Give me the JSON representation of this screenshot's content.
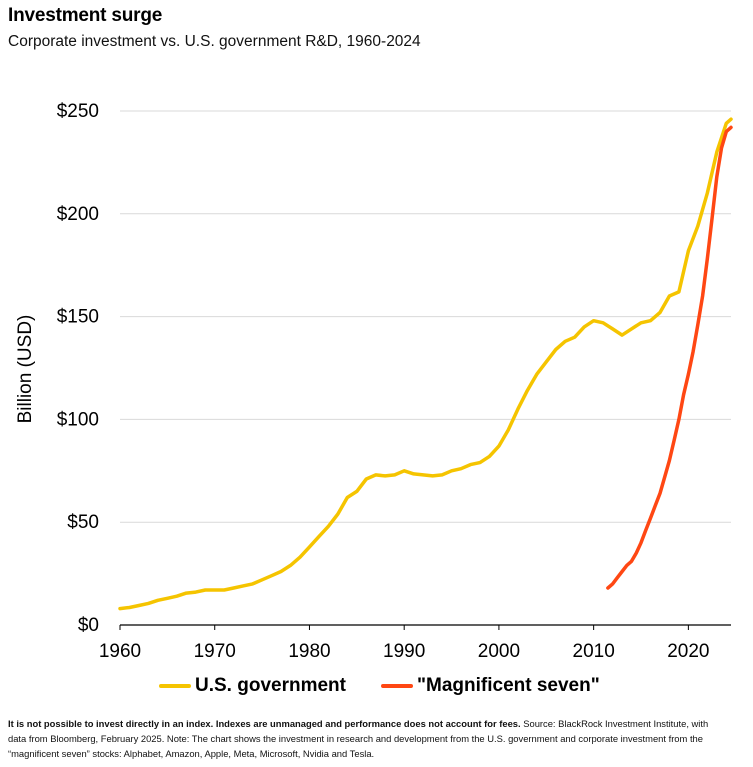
{
  "title": "Investment surge",
  "subtitle": "Corporate investment vs. U.S. government R&D, 1960-2024",
  "footnote": {
    "bold": "It is not possible to invest directly in an index. Indexes are unmanaged and performance does not account for fees.",
    "text": " Source: BlackRock Investment Institute, with data from Bloomberg, February 2025. Note: The chart shows the investment in research and development from the U.S. government and corporate investment from the “magnificent seven” stocks: Alphabet, Amazon, Apple, Meta, Microsoft, Nvidia and Tesla."
  },
  "chart_data": {
    "type": "line",
    "title": "Investment surge",
    "subtitle": "Corporate investment vs. U.S. government R&D, 1960-2024",
    "xlabel": "",
    "ylabel": "Billion (USD)",
    "xlim": [
      1960,
      2024.5
    ],
    "ylim": [
      0,
      250
    ],
    "x_ticks": [
      1960,
      1970,
      1980,
      1990,
      2000,
      2010,
      2020
    ],
    "y_ticks": [
      0,
      50,
      100,
      150,
      200,
      250
    ],
    "y_tick_labels": [
      "$0",
      "$50",
      "$100",
      "$150",
      "$200",
      "$250"
    ],
    "grid": "horizontal",
    "legend": "bottom",
    "series": [
      {
        "name": "U.S. government",
        "color": "#F5C400",
        "x": [
          1960,
          1961,
          1962,
          1963,
          1964,
          1965,
          1966,
          1967,
          1968,
          1969,
          1970,
          1971,
          1972,
          1973,
          1974,
          1975,
          1976,
          1977,
          1978,
          1979,
          1980,
          1981,
          1982,
          1983,
          1984,
          1985,
          1986,
          1987,
          1988,
          1989,
          1990,
          1991,
          1992,
          1993,
          1994,
          1995,
          1996,
          1997,
          1998,
          1999,
          2000,
          2001,
          2002,
          2003,
          2004,
          2005,
          2006,
          2007,
          2008,
          2009,
          2010,
          2011,
          2012,
          2013,
          2014,
          2015,
          2016,
          2017,
          2018,
          2019,
          2020,
          2021,
          2022,
          2023,
          2024,
          2024.5
        ],
        "y": [
          8,
          8.5,
          9.5,
          10.5,
          12,
          13,
          14,
          15.5,
          16,
          17,
          17,
          17,
          18,
          19,
          20,
          22,
          24,
          26,
          29,
          33,
          38,
          43,
          48,
          54,
          62,
          65,
          71,
          73,
          72.5,
          73,
          75,
          73.5,
          73,
          72.5,
          73,
          75,
          76,
          78,
          79,
          82,
          87,
          95,
          105,
          114,
          122,
          128,
          134,
          138,
          140,
          145,
          148,
          147,
          144,
          141,
          144,
          147,
          148,
          152,
          160,
          162,
          182,
          194,
          210,
          230,
          244,
          246
        ]
      },
      {
        "name": "\"Magnificent seven\"",
        "color": "#FF4713",
        "x": [
          2011.5,
          2012,
          2012.5,
          2013,
          2013.5,
          2014,
          2014.5,
          2015,
          2015.5,
          2016,
          2016.5,
          2017,
          2017.5,
          2018,
          2018.5,
          2019,
          2019.5,
          2020,
          2020.5,
          2021,
          2021.5,
          2022,
          2022.5,
          2023,
          2023.5,
          2024,
          2024.5
        ],
        "y": [
          18,
          20,
          23,
          26,
          29,
          31,
          35,
          40,
          46,
          52,
          58,
          64,
          72,
          80,
          90,
          100,
          112,
          122,
          133,
          146,
          160,
          178,
          198,
          218,
          232,
          240,
          242
        ]
      }
    ]
  }
}
